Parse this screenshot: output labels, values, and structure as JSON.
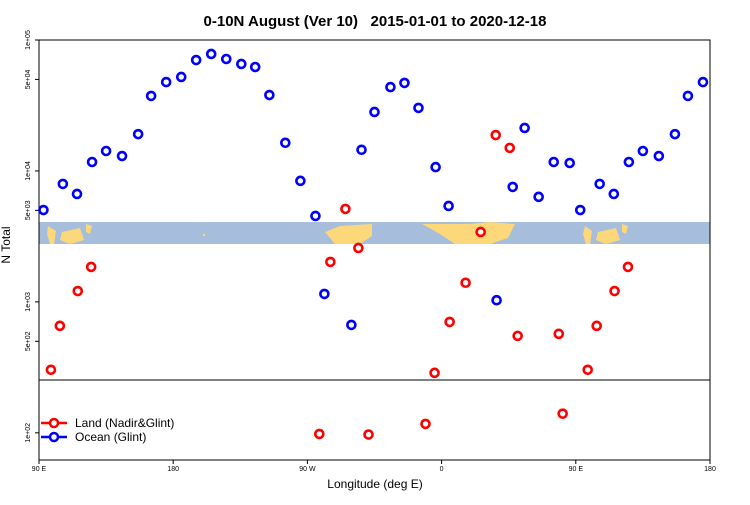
{
  "chart_data": {
    "type": "scatter",
    "title": "0-10N August (Ver 10)   2015-01-01 to 2020-12-18",
    "xlabel": "Longitude (deg E)",
    "ylabel": "N Total",
    "yscale": "log",
    "ylim": [
      62,
      100000
    ],
    "xlim_unwrapped": [
      90,
      540
    ],
    "x_ticks": [
      {
        "value": 90,
        "label": "90 E"
      },
      {
        "value": 180,
        "label": "180"
      },
      {
        "value": 270,
        "label": "90 W"
      },
      {
        "value": 360,
        "label": "0"
      },
      {
        "value": 450,
        "label": "90 E"
      },
      {
        "value": 540,
        "label": "180"
      }
    ],
    "y_ticks": [
      {
        "value": 100,
        "label": "1e+02"
      },
      {
        "value": 500,
        "label": "5e+02"
      },
      {
        "value": 1000,
        "label": "1e+03"
      },
      {
        "value": 5000,
        "label": "5e+03"
      },
      {
        "value": 10000,
        "label": "1e+04"
      },
      {
        "value": 50000,
        "label": "5e+04"
      },
      {
        "value": 100000,
        "label": "1e+05"
      }
    ],
    "panel_break_value": 250,
    "legend": {
      "placement": "bottom-left"
    },
    "series": [
      {
        "name": "Land (Nadir&Glint)",
        "color": "#ff0000",
        "points": [
          [
            98,
            303
          ],
          [
            104,
            656
          ],
          [
            116,
            1210
          ],
          [
            125,
            1850
          ],
          [
            -82,
            98
          ],
          [
            -74.6,
            2020
          ],
          [
            -64.5,
            5130
          ],
          [
            -55.8,
            2580
          ],
          [
            -49,
            97
          ],
          [
            -10.8,
            117
          ],
          [
            -4.7,
            287
          ],
          [
            5.4,
            703
          ],
          [
            16.1,
            1400
          ],
          [
            26.2,
            3420
          ],
          [
            36.3,
            18800
          ],
          [
            45.7,
            15000
          ],
          [
            51,
            550
          ],
          [
            78.6,
            570
          ],
          [
            81.2,
            140
          ]
        ]
      },
      {
        "name": "Ocean (Glint)",
        "color": "#0000ff",
        "points": [
          [
            93,
            5030
          ],
          [
            106,
            7960
          ],
          [
            115.5,
            6670
          ],
          [
            125.6,
            11700
          ],
          [
            135,
            14200
          ],
          [
            145.7,
            13000
          ],
          [
            156.5,
            19100
          ],
          [
            165.2,
            37400
          ],
          [
            175.3,
            47700
          ],
          [
            -174.6,
            52200
          ],
          [
            -164.6,
            70300
          ],
          [
            -154.5,
            78200
          ],
          [
            -144.4,
            71600
          ],
          [
            -134.3,
            65600
          ],
          [
            -125,
            62200
          ],
          [
            -115.5,
            38000
          ],
          [
            -104.8,
            16400
          ],
          [
            -94.7,
            8400
          ],
          [
            -84.6,
            4530
          ],
          [
            -78.6,
            1150
          ],
          [
            -60.5,
            667
          ],
          [
            -53.7,
            14500
          ],
          [
            -45,
            28200
          ],
          [
            -34.3,
            43700
          ],
          [
            -24.9,
            47000
          ],
          [
            -15.5,
            30300
          ],
          [
            -4,
            10700
          ],
          [
            4.7,
            5400
          ],
          [
            36.9,
            1030
          ],
          [
            47.7,
            7550
          ],
          [
            55.7,
            21300
          ],
          [
            65.1,
            6340
          ],
          [
            75.2,
            11700
          ],
          [
            85.9,
            11500
          ]
        ]
      }
    ]
  }
}
